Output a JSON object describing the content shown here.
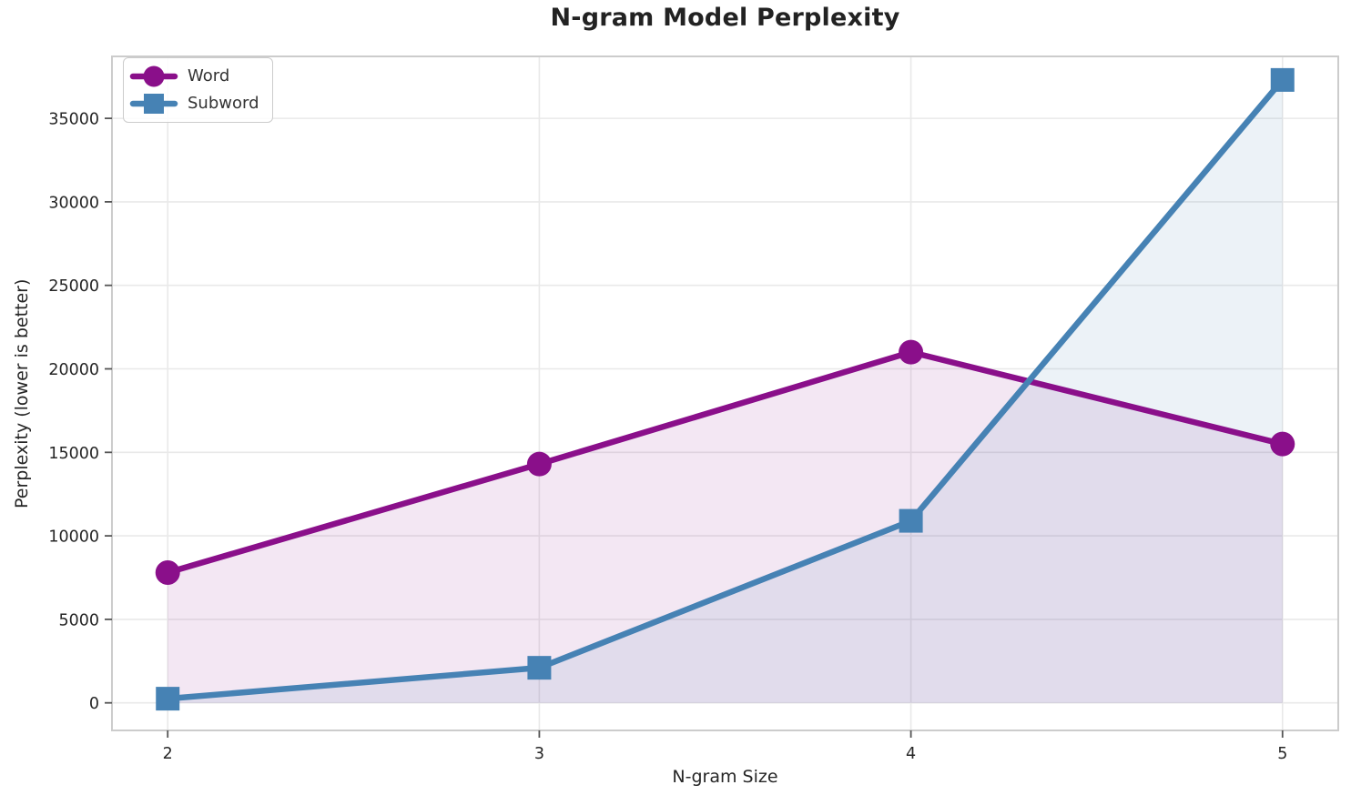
{
  "title": "N-gram Model Perplexity",
  "chart_data": {
    "type": "line",
    "title": "N-gram Model Perplexity",
    "xlabel": "N-gram Size",
    "ylabel": "Perplexity (lower is better)",
    "x": [
      2,
      3,
      4,
      5
    ],
    "xticks": [
      "2",
      "3",
      "4",
      "5"
    ],
    "yticks": [
      0,
      5000,
      10000,
      15000,
      20000,
      25000,
      30000,
      35000
    ],
    "xlim": [
      1.85,
      5.15
    ],
    "ylim": [
      -1650,
      38710
    ],
    "grid": true,
    "legend_position": "upper-left",
    "fill_alpha": 0.1,
    "series": [
      {
        "name": "Word",
        "marker": "circle",
        "color": "#8A0F8A",
        "values": [
          7800,
          14300,
          21000,
          15500
        ]
      },
      {
        "name": "Subword",
        "marker": "square",
        "color": "#4682B4",
        "values": [
          250,
          2100,
          10900,
          37300
        ]
      }
    ]
  },
  "colors": {
    "background": "#FFFFFF",
    "grid": "#E9E9E9",
    "spine": "#CCCCCC",
    "tick": "#555555",
    "tick_label": "#262626",
    "title_text": "#222222"
  }
}
